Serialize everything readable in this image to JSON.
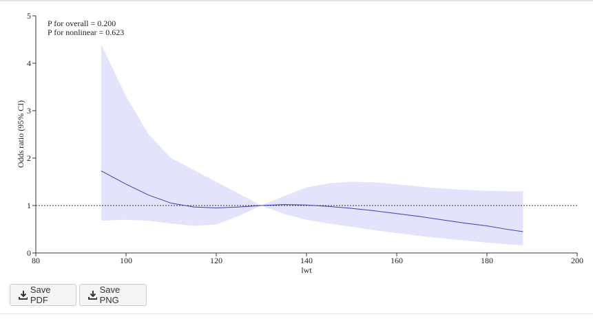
{
  "chart_data": {
    "type": "line",
    "xlabel": "lwt",
    "ylabel": "Odds ratio (95% CI)",
    "annotations": [
      "P for overall = 0.200",
      "P for nonlinear = 0.623"
    ],
    "x": [
      94.5,
      100,
      105,
      110,
      115,
      120,
      125,
      130,
      135,
      140,
      145,
      150,
      155,
      160,
      165,
      170,
      175,
      180,
      185,
      188
    ],
    "series": [
      {
        "color": "#3838c8",
        "values": [
          1.73,
          1.45,
          1.22,
          1.05,
          0.97,
          0.95,
          0.97,
          1.0,
          1.02,
          1.01,
          0.98,
          0.94,
          0.89,
          0.83,
          0.77,
          0.7,
          0.63,
          0.57,
          0.49,
          0.45
        ]
      }
    ],
    "ci_color": "#e3e3fc",
    "ci_upper": [
      4.4,
      3.3,
      2.5,
      2.0,
      1.75,
      1.5,
      1.25,
      1.0,
      1.2,
      1.38,
      1.47,
      1.5,
      1.49,
      1.45,
      1.4,
      1.36,
      1.33,
      1.31,
      1.3,
      1.3
    ],
    "ci_lower": [
      0.68,
      0.7,
      0.68,
      0.62,
      0.57,
      0.6,
      0.78,
      1.0,
      0.82,
      0.7,
      0.62,
      0.55,
      0.48,
      0.42,
      0.36,
      0.31,
      0.26,
      0.22,
      0.18,
      0.16
    ],
    "ref_line": 1,
    "xlim": [
      80,
      200
    ],
    "xticks": [
      80,
      100,
      120,
      140,
      160,
      180,
      200
    ],
    "ylim": [
      0,
      5
    ],
    "yticks": [
      0,
      1,
      2,
      3,
      4,
      5
    ]
  },
  "buttons": [
    "Save PDF",
    "Save PNG"
  ]
}
